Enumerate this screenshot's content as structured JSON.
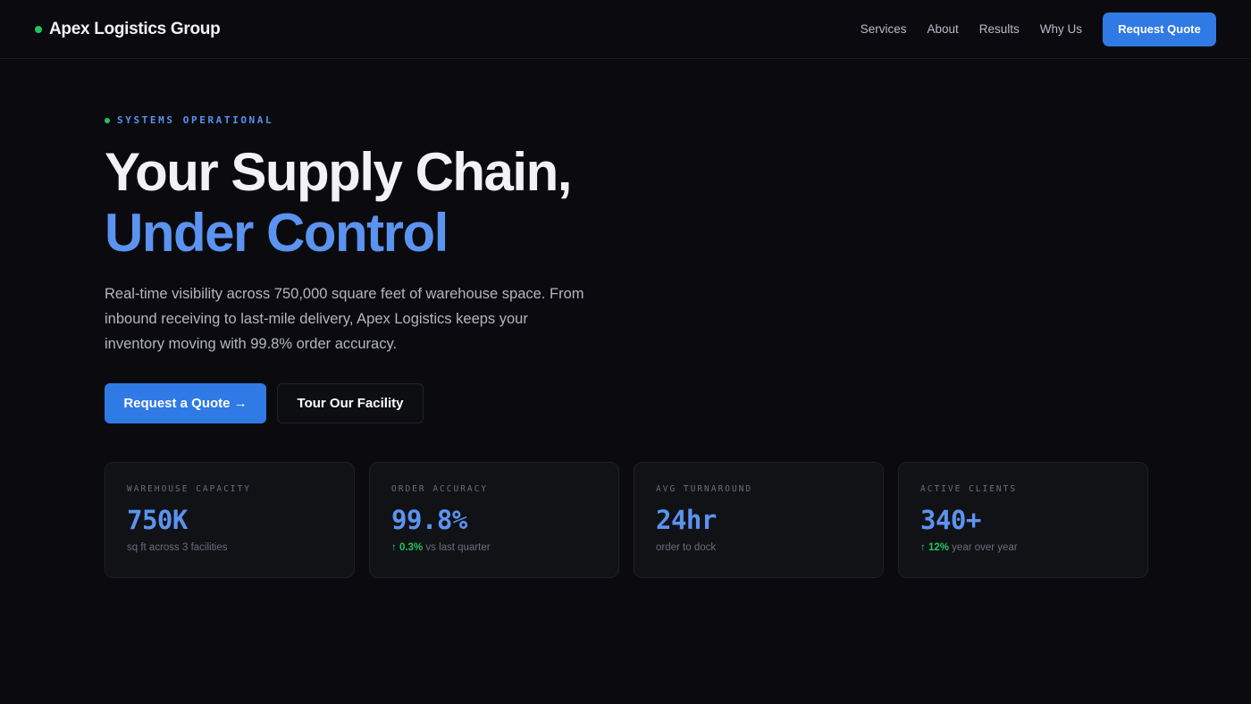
{
  "nav": {
    "brand": "Apex Logistics Group",
    "links": [
      "Services",
      "About",
      "Results",
      "Why Us"
    ],
    "cta": "Request Quote"
  },
  "hero": {
    "status": "SYSTEMS OPERATIONAL",
    "title_line1": "Your Supply Chain,",
    "title_line2": "Under Control",
    "description": "Real-time visibility across 750,000 square feet of warehouse space. From inbound receiving to last-mile delivery, Apex Logistics keeps your inventory moving with 99.8% order accuracy.",
    "primary_button": "Request a Quote →",
    "secondary_button": "Tour Our Facility"
  },
  "stats": [
    {
      "label": "WAREHOUSE CAPACITY",
      "value": "750K",
      "note": "sq ft across 3 facilities"
    },
    {
      "label": "ORDER ACCURACY",
      "value": "99.8%",
      "change": "↑ 0.3%",
      "note": "vs last quarter"
    },
    {
      "label": "AVG TURNAROUND",
      "value": "24hr",
      "note": "order to dock"
    },
    {
      "label": "ACTIVE CLIENTS",
      "value": "340+",
      "change": "↑ 12%",
      "note": "year over year"
    }
  ]
}
